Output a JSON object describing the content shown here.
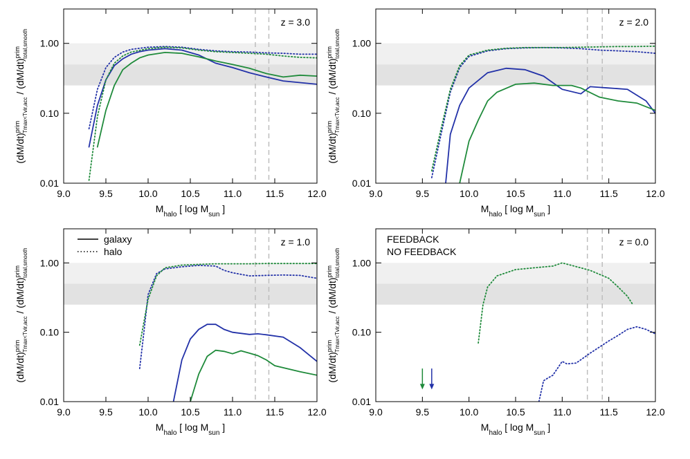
{
  "chart_data": [
    {
      "type": "line",
      "annotation": "z = 3.0",
      "log_y": true,
      "xlim": [
        9,
        12
      ],
      "ylim": [
        0.01,
        3.1
      ],
      "xticks": [
        {
          "value": 9,
          "label": "9.0"
        },
        9.5,
        {
          "value": 10,
          "label": "10.0"
        },
        10.5,
        {
          "value": 11,
          "label": "11.0"
        },
        11.5,
        {
          "value": 12,
          "label": "12.0"
        }
      ],
      "yticks": [
        0.01,
        {
          "value": 0.1,
          "label": "0.10"
        },
        {
          "value": 1,
          "label": "1.00"
        }
      ],
      "xlabel": {
        "base": "M",
        "sub": "halo",
        "rest": " [ log M",
        "sub2": "sun",
        "end": " ]"
      },
      "ylabel": {
        "base": "(dM/dt)",
        "sup": "prim",
        "sub": "Tmax<Tvir,acc",
        "sep": " / (dM/dt)",
        "sup2": "prim",
        "sub2": "total,smooth"
      },
      "bands": [
        {
          "from": 0.5,
          "to": 1,
          "color": "#f0f0f0"
        },
        {
          "from": 0.25,
          "to": 0.5,
          "color": "#e2e2e2"
        }
      ],
      "vlines": [
        11.27,
        11.43
      ],
      "series": [
        {
          "color": "#2231a8",
          "dash": "solid",
          "x": [
            9.3,
            9.4,
            9.5,
            9.6,
            9.7,
            9.8,
            9.9,
            10.0,
            10.2,
            10.4,
            10.6,
            10.8,
            11.0,
            11.2,
            11.4,
            11.6,
            12.0
          ],
          "values": [
            0.033,
            0.13,
            0.3,
            0.48,
            0.6,
            0.7,
            0.76,
            0.8,
            0.84,
            0.8,
            0.68,
            0.52,
            0.45,
            0.38,
            0.33,
            0.29,
            0.26
          ]
        },
        {
          "color": "#1e8a3a",
          "dash": "solid",
          "x": [
            9.4,
            9.5,
            9.6,
            9.7,
            9.8,
            9.9,
            10.0,
            10.2,
            10.4,
            10.6,
            10.8,
            11.0,
            11.2,
            11.4,
            11.6,
            11.8,
            12.0
          ],
          "values": [
            0.033,
            0.11,
            0.25,
            0.42,
            0.52,
            0.62,
            0.68,
            0.74,
            0.72,
            0.64,
            0.56,
            0.5,
            0.44,
            0.37,
            0.33,
            0.35,
            0.34
          ]
        },
        {
          "color": "#2231a8",
          "dash": "dotted",
          "x": [
            9.3,
            9.4,
            9.5,
            9.6,
            9.7,
            9.8,
            10.0,
            10.2,
            10.4,
            10.6,
            10.8,
            11.0,
            11.2,
            11.4,
            11.6,
            11.8,
            12.0
          ],
          "values": [
            0.06,
            0.22,
            0.45,
            0.63,
            0.75,
            0.82,
            0.88,
            0.9,
            0.88,
            0.82,
            0.78,
            0.76,
            0.75,
            0.73,
            0.72,
            0.7,
            0.7
          ]
        },
        {
          "color": "#1e8a3a",
          "dash": "dotted",
          "x": [
            9.3,
            9.4,
            9.5,
            9.6,
            9.7,
            9.8,
            10.0,
            10.2,
            10.4,
            10.6,
            10.8,
            11.0,
            11.2,
            11.4,
            11.6,
            11.8,
            12.0
          ],
          "values": [
            0.011,
            0.09,
            0.3,
            0.52,
            0.66,
            0.75,
            0.84,
            0.88,
            0.86,
            0.8,
            0.76,
            0.74,
            0.72,
            0.7,
            0.66,
            0.63,
            0.62
          ]
        }
      ]
    },
    {
      "type": "line",
      "annotation": "z = 2.0",
      "log_y": true,
      "xlim": [
        9,
        12
      ],
      "ylim": [
        0.01,
        3.1
      ],
      "xticks": [
        {
          "value": 9,
          "label": "9.0"
        },
        9.5,
        {
          "value": 10,
          "label": "10.0"
        },
        10.5,
        {
          "value": 11,
          "label": "11.0"
        },
        11.5,
        {
          "value": 12,
          "label": "12.0"
        }
      ],
      "yticks": [
        0.01,
        {
          "value": 0.1,
          "label": "0.10"
        },
        {
          "value": 1,
          "label": "1.00"
        }
      ],
      "xlabel": {
        "base": "M",
        "sub": "halo",
        "rest": " [ log M",
        "sub2": "sun",
        "end": " ]"
      },
      "ylabel": {
        "base": "(dM/dt)",
        "sup": "prim",
        "sub": "Tmax<Tvir,acc",
        "sep": " / (dM/dt)",
        "sup2": "prim",
        "sub2": "total,smooth"
      },
      "bands": [
        {
          "from": 0.5,
          "to": 1,
          "color": "#f0f0f0"
        },
        {
          "from": 0.25,
          "to": 0.5,
          "color": "#e2e2e2"
        }
      ],
      "vlines": [
        11.27,
        11.43
      ],
      "series": [
        {
          "color": "#2231a8",
          "dash": "solid",
          "x": [
            9.75,
            9.8,
            9.9,
            10.0,
            10.2,
            10.4,
            10.6,
            10.8,
            11.0,
            11.2,
            11.3,
            11.5,
            11.7,
            11.9,
            12.0
          ],
          "values": [
            0.01,
            0.05,
            0.13,
            0.23,
            0.38,
            0.44,
            0.42,
            0.34,
            0.22,
            0.19,
            0.24,
            0.23,
            0.22,
            0.15,
            0.1
          ]
        },
        {
          "color": "#1e8a3a",
          "dash": "solid",
          "x": [
            9.9,
            10.0,
            10.1,
            10.2,
            10.3,
            10.5,
            10.7,
            10.9,
            11.1,
            11.2,
            11.4,
            11.6,
            11.8,
            12.0
          ],
          "values": [
            0.01,
            0.04,
            0.08,
            0.15,
            0.2,
            0.26,
            0.27,
            0.25,
            0.25,
            0.23,
            0.17,
            0.15,
            0.14,
            0.11
          ]
        },
        {
          "color": "#2231a8",
          "dash": "dotted",
          "x": [
            9.6,
            9.7,
            9.8,
            9.9,
            10.0,
            10.2,
            10.4,
            10.6,
            10.8,
            11.0,
            11.2,
            11.4,
            11.6,
            11.8,
            12.0
          ],
          "values": [
            0.012,
            0.05,
            0.2,
            0.45,
            0.65,
            0.78,
            0.84,
            0.86,
            0.87,
            0.86,
            0.84,
            0.8,
            0.78,
            0.76,
            0.72
          ]
        },
        {
          "color": "#1e8a3a",
          "dash": "dotted",
          "x": [
            9.6,
            9.7,
            9.8,
            9.9,
            10.0,
            10.2,
            10.4,
            10.6,
            10.8,
            11.0,
            11.2,
            11.4,
            11.6,
            11.8,
            12.0
          ],
          "values": [
            0.015,
            0.06,
            0.22,
            0.48,
            0.68,
            0.8,
            0.85,
            0.87,
            0.87,
            0.87,
            0.88,
            0.89,
            0.9,
            0.9,
            0.91
          ]
        }
      ]
    },
    {
      "type": "line",
      "annotation": "z = 1.0",
      "log_y": true,
      "xlim": [
        9,
        12
      ],
      "ylim": [
        0.01,
        3.1
      ],
      "xticks": [
        {
          "value": 9,
          "label": "9.0"
        },
        9.5,
        {
          "value": 10,
          "label": "10.0"
        },
        10.5,
        {
          "value": 11,
          "label": "11.0"
        },
        11.5,
        {
          "value": 12,
          "label": "12.0"
        }
      ],
      "yticks": [
        0.01,
        {
          "value": 0.1,
          "label": "0.10"
        },
        {
          "value": 1,
          "label": "1.00"
        }
      ],
      "xlabel": {
        "base": "M",
        "sub": "halo",
        "rest": " [ log M",
        "sub2": "sun",
        "end": " ]"
      },
      "ylabel": {
        "base": "(dM/dt)",
        "sup": "prim",
        "sub": "Tmax<Tvir,acc",
        "sep": " / (dM/dt)",
        "sup2": "prim",
        "sub2": "total,smooth"
      },
      "bands": [
        {
          "from": 0.5,
          "to": 1,
          "color": "#f0f0f0"
        },
        {
          "from": 0.25,
          "to": 0.5,
          "color": "#e2e2e2"
        }
      ],
      "vlines": [
        11.27,
        11.43
      ],
      "legend": [
        {
          "label": "galaxy",
          "dash": "solid",
          "color": "#000000"
        },
        {
          "label": "halo",
          "dash": "dotted",
          "color": "#000000"
        }
      ],
      "series": [
        {
          "color": "#2231a8",
          "dash": "solid",
          "x": [
            10.3,
            10.4,
            10.5,
            10.6,
            10.7,
            10.8,
            10.9,
            11.0,
            11.2,
            11.3,
            11.4,
            11.6,
            11.8,
            12.0
          ],
          "values": [
            0.01,
            0.04,
            0.08,
            0.11,
            0.13,
            0.13,
            0.11,
            0.1,
            0.093,
            0.095,
            0.092,
            0.085,
            0.06,
            0.038
          ]
        },
        {
          "color": "#1e8a3a",
          "dash": "solid",
          "x": [
            10.5,
            10.6,
            10.7,
            10.8,
            10.9,
            11.0,
            11.1,
            11.2,
            11.3,
            11.4,
            11.5,
            11.8,
            12.0
          ],
          "values": [
            0.01,
            0.025,
            0.045,
            0.055,
            0.053,
            0.049,
            0.054,
            0.05,
            0.046,
            0.04,
            0.033,
            0.027,
            0.024
          ]
        },
        {
          "color": "#2231a8",
          "dash": "dotted",
          "x": [
            9.9,
            9.95,
            10.0,
            10.1,
            10.2,
            10.4,
            10.6,
            10.8,
            10.9,
            11.0,
            11.2,
            11.4,
            11.6,
            11.8,
            12.0
          ],
          "values": [
            0.03,
            0.1,
            0.35,
            0.7,
            0.82,
            0.88,
            0.92,
            0.9,
            0.78,
            0.72,
            0.65,
            0.66,
            0.67,
            0.66,
            0.6
          ]
        },
        {
          "color": "#1e8a3a",
          "dash": "dotted",
          "x": [
            9.9,
            10.0,
            10.1,
            10.2,
            10.4,
            10.6,
            10.8,
            11.0,
            11.2,
            11.4,
            11.6,
            11.8,
            12.0
          ],
          "values": [
            0.065,
            0.3,
            0.65,
            0.85,
            0.93,
            0.95,
            0.97,
            0.97,
            0.97,
            0.98,
            0.98,
            0.98,
            0.98
          ]
        }
      ]
    },
    {
      "type": "line",
      "annotation": "z = 0.0",
      "log_y": true,
      "xlim": [
        9,
        12
      ],
      "ylim": [
        0.01,
        3.1
      ],
      "xticks": [
        {
          "value": 9,
          "label": "9.0"
        },
        9.5,
        {
          "value": 10,
          "label": "10.0"
        },
        10.5,
        {
          "value": 11,
          "label": "11.0"
        },
        11.5,
        {
          "value": 12,
          "label": "12.0"
        }
      ],
      "yticks": [
        0.01,
        {
          "value": 0.1,
          "label": "0.10"
        },
        {
          "value": 1,
          "label": "1.00"
        }
      ],
      "xlabel": {
        "base": "M",
        "sub": "halo",
        "rest": " [ log M",
        "sub2": "sun",
        "end": " ]"
      },
      "ylabel": {
        "base": "(dM/dt)",
        "sup": "prim",
        "sub": "Tmax<Tvir,acc",
        "sep": " / (dM/dt)",
        "sup2": "prim",
        "sub2": "total,smooth"
      },
      "bands": [
        {
          "from": 0.5,
          "to": 1,
          "color": "#f0f0f0"
        },
        {
          "from": 0.25,
          "to": 0.5,
          "color": "#e2e2e2"
        }
      ],
      "vlines": [
        11.27,
        11.43
      ],
      "legend": [
        {
          "label": "FEEDBACK",
          "color": "#2231a8"
        },
        {
          "label": "NO FEEDBACK",
          "color": "#1e8a3a"
        }
      ],
      "arrows": [
        {
          "x": 9.5,
          "color": "#1e8a3a"
        },
        {
          "x": 9.6,
          "color": "#2231a8"
        }
      ],
      "series": [
        {
          "color": "#2231a8",
          "dash": "dotted",
          "x": [
            10.75,
            10.8,
            10.85,
            10.9,
            11.0,
            11.05,
            11.15,
            11.3,
            11.5,
            11.6,
            11.7,
            11.8,
            11.9,
            12.0
          ],
          "values": [
            0.01,
            0.02,
            0.022,
            0.024,
            0.038,
            0.035,
            0.036,
            0.05,
            0.075,
            0.09,
            0.11,
            0.12,
            0.11,
            0.095
          ]
        },
        {
          "color": "#1e8a3a",
          "dash": "dotted",
          "x": [
            10.1,
            10.15,
            10.2,
            10.3,
            10.5,
            10.7,
            10.9,
            11.0,
            11.1,
            11.3,
            11.5,
            11.6,
            11.7,
            11.75
          ],
          "values": [
            0.07,
            0.25,
            0.45,
            0.65,
            0.8,
            0.85,
            0.9,
            1.0,
            0.92,
            0.78,
            0.6,
            0.45,
            0.33,
            0.26
          ]
        }
      ]
    }
  ]
}
